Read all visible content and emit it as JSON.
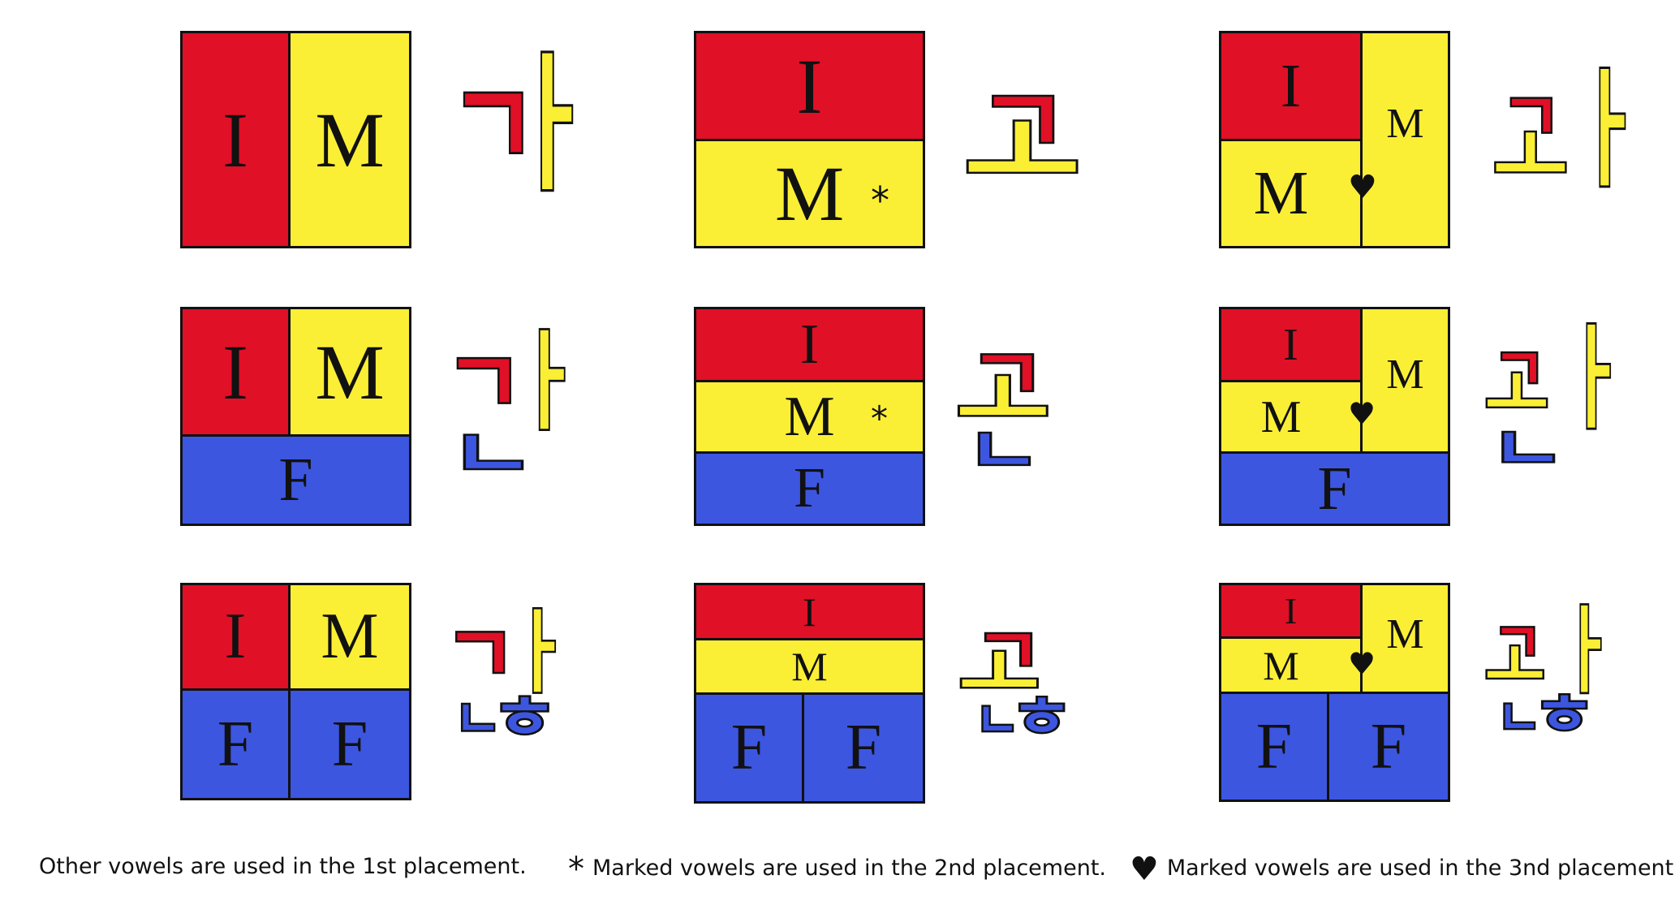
{
  "labels": {
    "initial": "I",
    "medial": "M",
    "final": "F"
  },
  "markers": {
    "second": "*",
    "third": "♥"
  },
  "syllables": {
    "r1c1": {
      "parts": [
        "가"
      ],
      "display": "가"
    },
    "r1c2": {
      "display": "고"
    },
    "r1c3": {
      "display": "과"
    },
    "r2c1": {
      "display": "간"
    },
    "r2c2": {
      "display": "곤"
    },
    "r2c3": {
      "display": "관"
    },
    "r3c1": {
      "display": "갅"
    },
    "r3c2": {
      "display": "곬"
    },
    "r3c3": {
      "display": "괎"
    }
  },
  "jamo": {
    "g": "ᄀ",
    "a": "ᅡ",
    "o": "ᅩ",
    "wa": "ᅪ",
    "n": "ᆫ",
    "ng": "ᆼ",
    "g_c": "ㄱ",
    "a_c": "ㅏ",
    "o_c": "ㅗ",
    "n_c": "ㄴ",
    "h_c": "ㅎ",
    "ng_c": "ㅇ"
  },
  "colors": {
    "initial": "#e01027",
    "medial": "#fbef36",
    "final": "#3d56e0"
  },
  "notes": {
    "first": "Other vowels are used in the 1st placement.",
    "second": "Marked vowels are used in the 2nd placement.",
    "third": "Marked vowels are used in the 3nd placement."
  }
}
